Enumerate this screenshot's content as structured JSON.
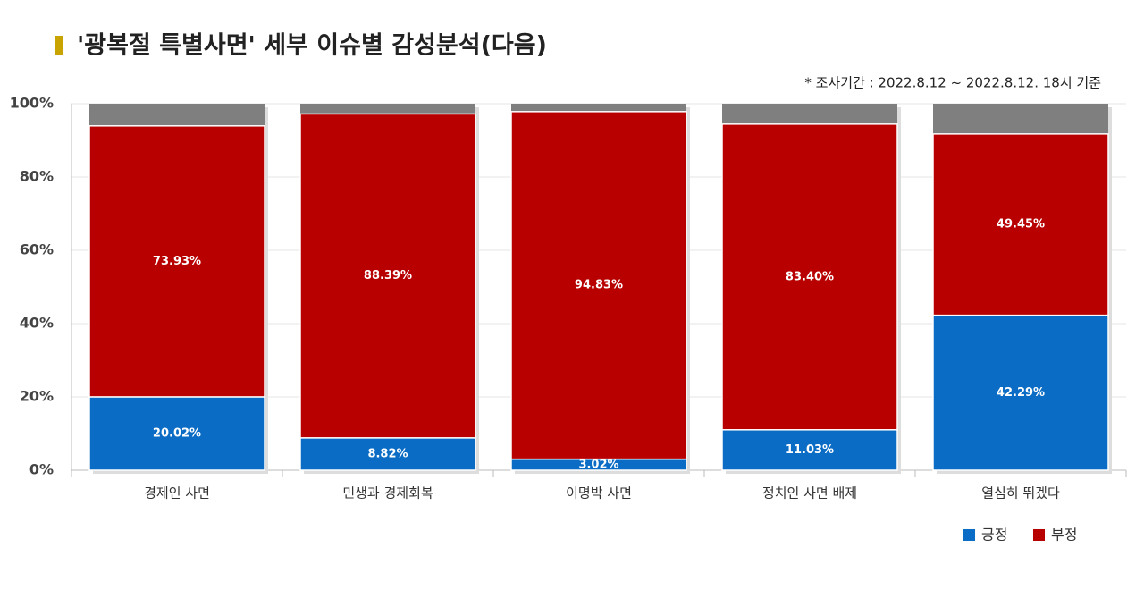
{
  "chart_data": {
    "type": "bar",
    "stacked": true,
    "title": "'광복절 특별사면' 세부 이슈별 감성분석(다음)",
    "subtitle": "* 조사기간 : 2022.8.12 ~ 2022.8.12. 18시 기준",
    "categories": [
      "경제인 사면",
      "민생과 경제회복",
      "이명박 사면",
      "정치인 사면 배제",
      "열심히 뛰겠다"
    ],
    "series": [
      {
        "name": "긍정",
        "color": "#0a6cc4",
        "values": [
          20.02,
          8.82,
          3.02,
          11.03,
          42.29
        ],
        "value_labels": [
          "20.02%",
          "8.82%",
          "3.02%",
          "11.03%",
          "42.29%"
        ]
      },
      {
        "name": "부정",
        "color": "#b80000",
        "values": [
          73.93,
          88.39,
          94.83,
          83.4,
          49.45
        ],
        "value_labels": [
          "73.93%",
          "88.39%",
          "94.83%",
          "83.40%",
          "49.45%"
        ]
      }
    ],
    "ylim": [
      0,
      100
    ],
    "yticks": [
      {
        "value": 0,
        "label": "0%"
      },
      {
        "value": 20,
        "label": "20%"
      },
      {
        "value": 40,
        "label": "40%"
      },
      {
        "value": 60,
        "label": "60%"
      },
      {
        "value": 80,
        "label": "80%"
      },
      {
        "value": 100,
        "label": "100%"
      }
    ],
    "grid": true
  }
}
